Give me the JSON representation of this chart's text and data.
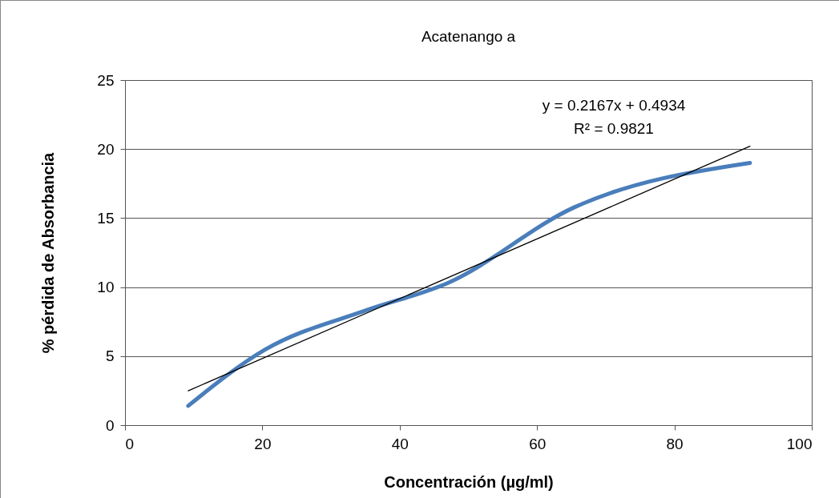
{
  "chart_data": {
    "type": "line",
    "title": "Acatenango a",
    "xlabel": "Concentración (µg/ml)",
    "ylabel": "% pérdida de Absorbancia",
    "x": [
      9.2,
      20.5,
      35,
      47,
      65.5,
      91
    ],
    "series": [
      {
        "color": "#4a7ebb",
        "values": [
          1.4,
          5.5,
          8.3,
          10.3,
          15.8,
          19.0
        ]
      },
      {
        "type": "line",
        "color": "#000000",
        "x": [
          9.2,
          91
        ],
        "values": [
          2.49,
          20.21
        ]
      }
    ],
    "xlim": [
      0,
      100
    ],
    "xticks": [
      0,
      20,
      40,
      60,
      80,
      100
    ],
    "ylim": [
      0,
      25
    ],
    "yticks": [
      0,
      5,
      10,
      15,
      20,
      25
    ],
    "grid": "y",
    "line_style": "solid",
    "marker": "none",
    "annotations": [
      "y = 0.2167x + 0.4934",
      "R² = 0.9821"
    ]
  }
}
